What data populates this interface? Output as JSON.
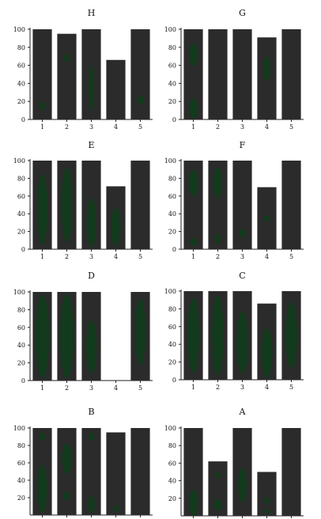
{
  "chart_data": [
    {
      "type": "bar",
      "title": "H",
      "categories": [
        "1",
        "2",
        "3",
        "4",
        "5"
      ],
      "values": [
        100,
        95,
        100,
        66,
        100
      ],
      "ylim": [
        0,
        100
      ],
      "yticks": [
        0,
        20,
        40,
        60,
        80,
        100
      ],
      "grid": false
    },
    {
      "type": "bar",
      "title": "G",
      "categories": [
        "1",
        "2",
        "3",
        "4",
        "5"
      ],
      "values": [
        100,
        100,
        100,
        91,
        100
      ],
      "ylim": [
        0,
        100
      ],
      "yticks": [
        0,
        20,
        40,
        60,
        80,
        100
      ],
      "grid": false
    },
    {
      "type": "bar",
      "title": "E",
      "categories": [
        "1",
        "2",
        "3",
        "4",
        "5"
      ],
      "values": [
        100,
        100,
        100,
        71,
        100
      ],
      "ylim": [
        0,
        100
      ],
      "yticks": [
        0,
        20,
        40,
        60,
        80,
        100
      ],
      "grid": false
    },
    {
      "type": "bar",
      "title": "F",
      "categories": [
        "1",
        "2",
        "3",
        "4",
        "5"
      ],
      "values": [
        100,
        100,
        100,
        70,
        100
      ],
      "ylim": [
        0,
        100
      ],
      "yticks": [
        0,
        20,
        40,
        60,
        80,
        100
      ],
      "grid": false
    },
    {
      "type": "bar",
      "title": "D",
      "categories": [
        "1",
        "2",
        "3",
        "4",
        "5"
      ],
      "values": [
        100,
        100,
        100,
        0,
        100
      ],
      "ylim": [
        0,
        100
      ],
      "yticks": [
        0,
        20,
        40,
        60,
        80,
        100
      ],
      "grid": false
    },
    {
      "type": "bar",
      "title": "C",
      "categories": [
        "1",
        "2",
        "3",
        "4",
        "5"
      ],
      "values": [
        100,
        100,
        100,
        86,
        100
      ],
      "ylim": [
        0,
        100
      ],
      "yticks": [
        0,
        20,
        40,
        60,
        80,
        100
      ],
      "grid": false
    },
    {
      "type": "bar",
      "title": "B",
      "categories": [
        "",
        "",
        "",
        "",
        ""
      ],
      "values": [
        100,
        100,
        100,
        95,
        100
      ],
      "ylim": [
        0,
        100
      ],
      "yticks": [
        20,
        40,
        60,
        80,
        100
      ],
      "grid": false
    },
    {
      "type": "bar",
      "title": "A",
      "categories": [
        "",
        "",
        "",
        "",
        ""
      ],
      "values": [
        100,
        62,
        100,
        50,
        100
      ],
      "ylim": [
        0,
        100
      ],
      "yticks": [
        20,
        40,
        60,
        80,
        100
      ],
      "grid": false
    }
  ],
  "colors": {
    "bar": "#2b2b2b",
    "blob": "#123a1c",
    "axis": "#222222"
  }
}
